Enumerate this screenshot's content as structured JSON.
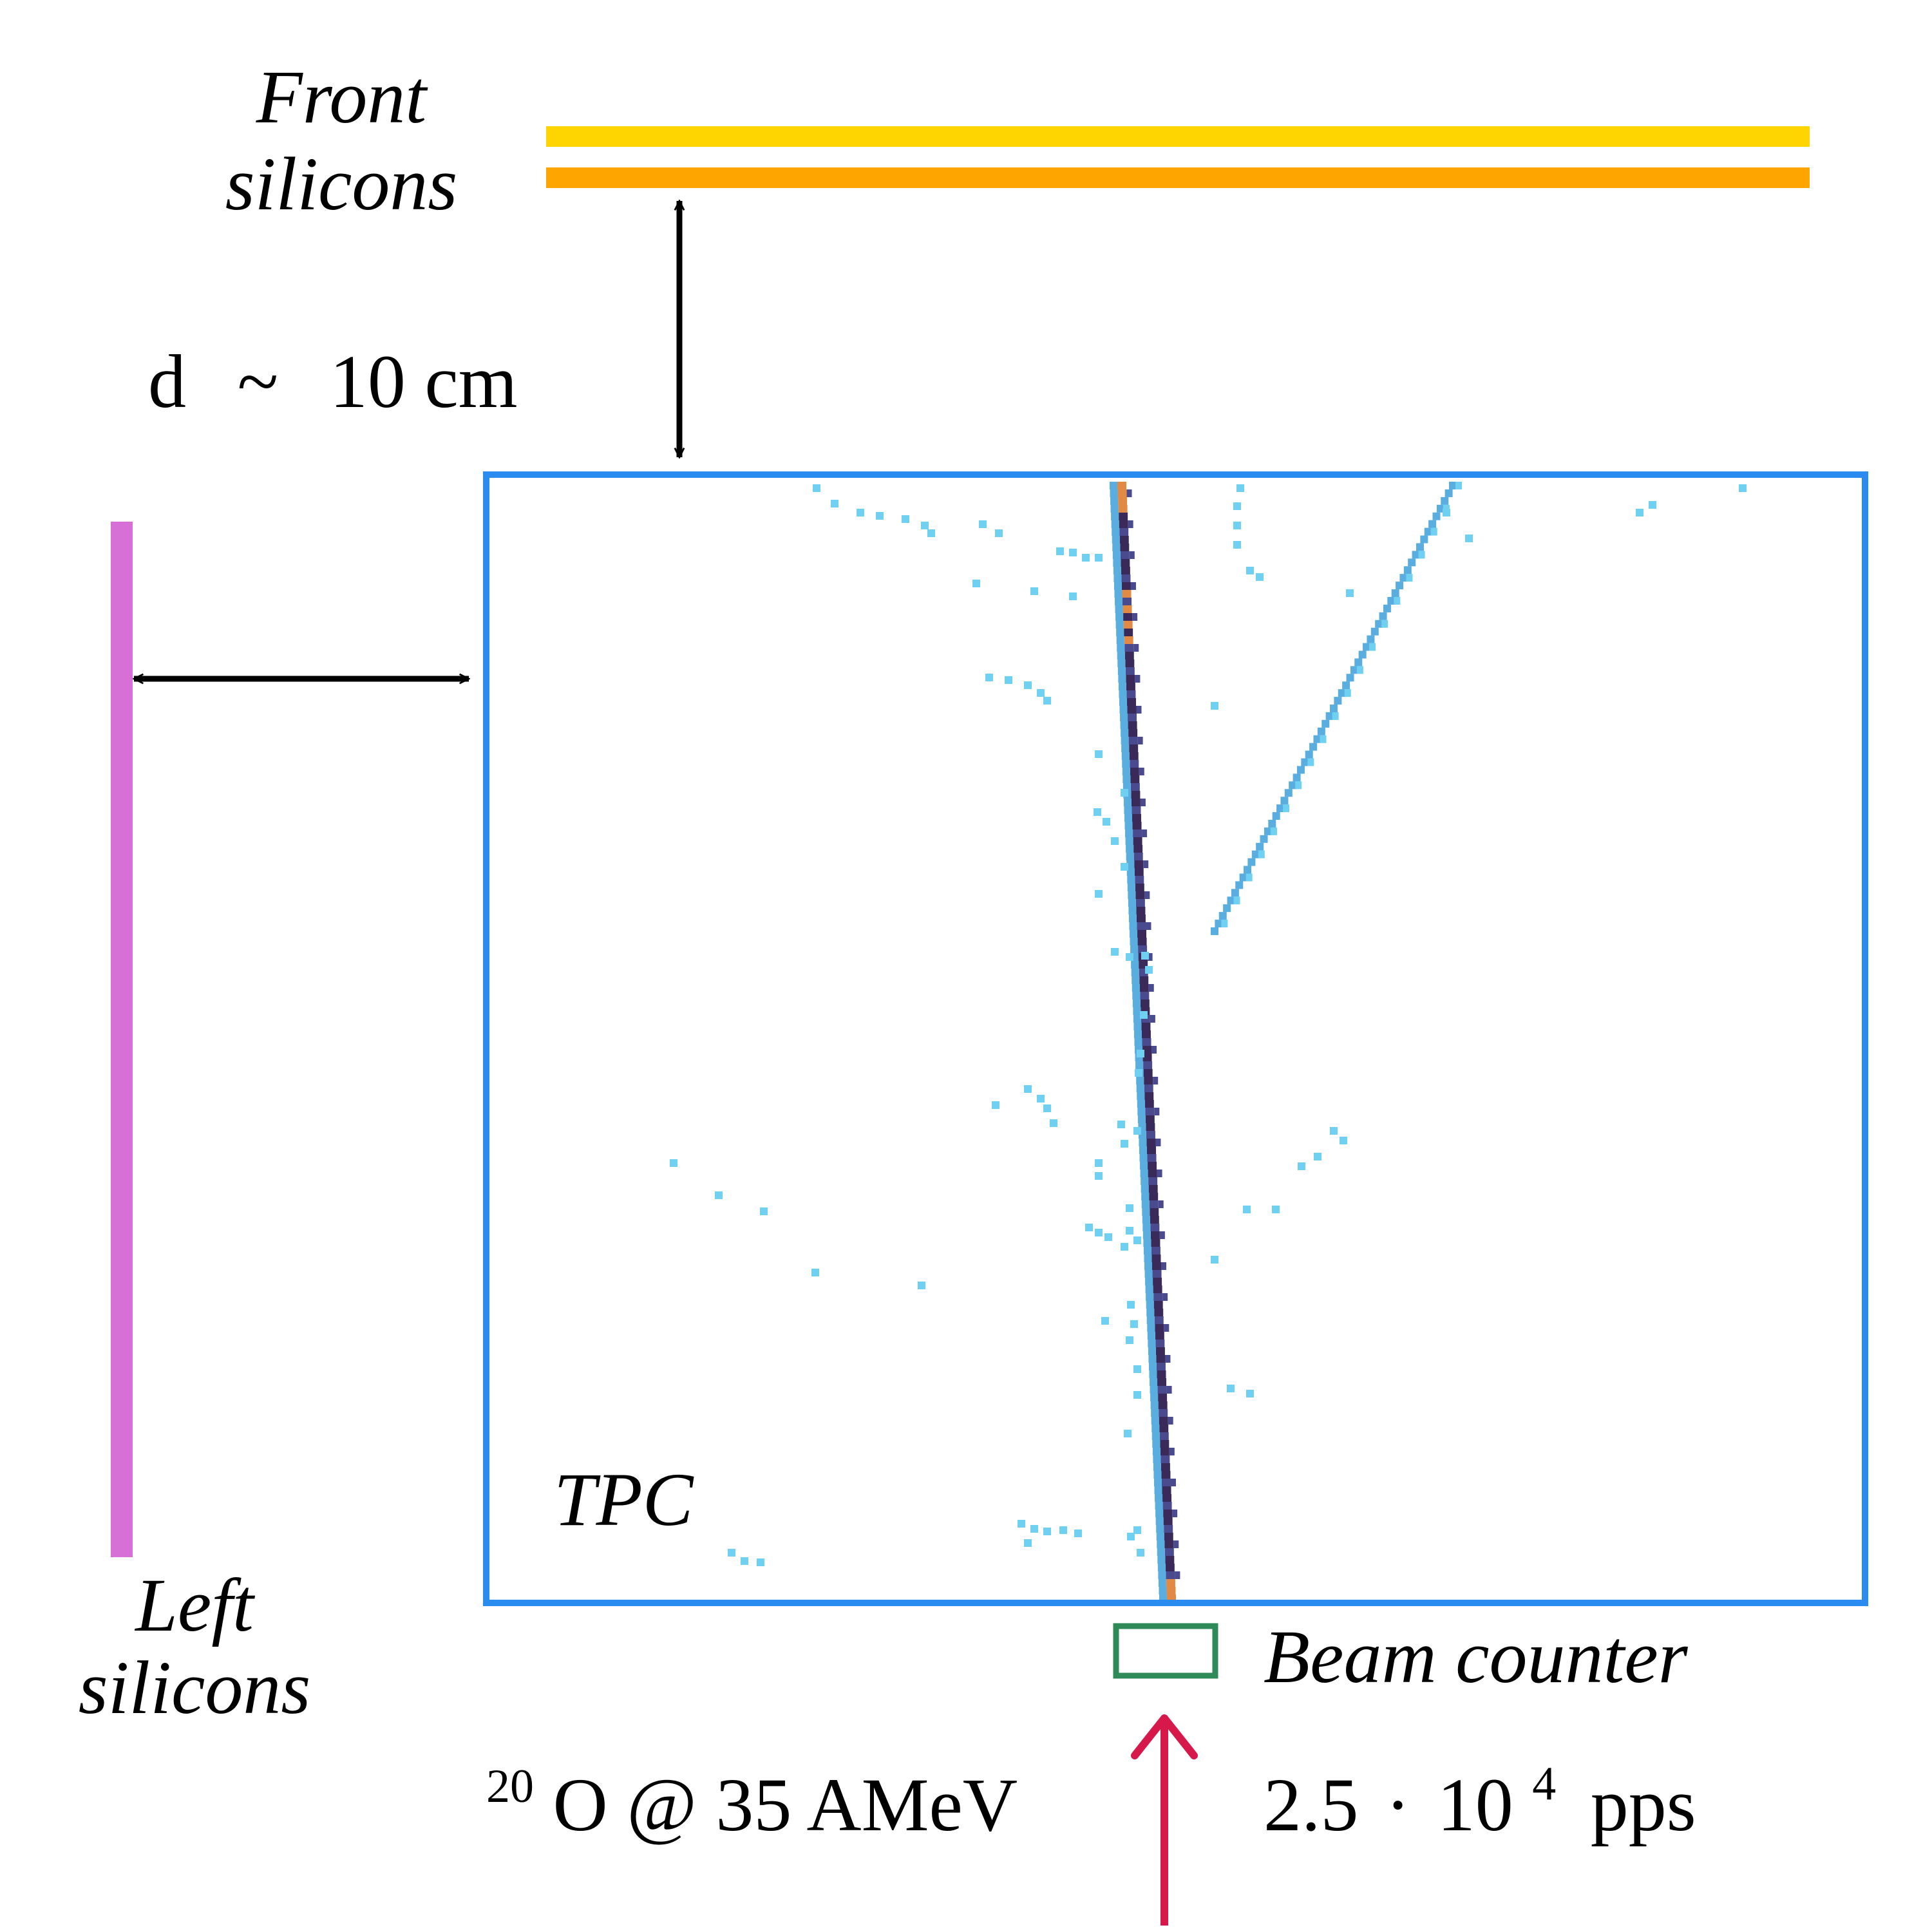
{
  "labels": {
    "front_line1": "Front",
    "front_line2": "silicons",
    "distance_d": "d",
    "distance_sim": "~",
    "distance_value": "10 cm",
    "left_line1": "Left",
    "left_line2": "silicons",
    "tpc": "TPC",
    "beam_counter": "Beam counter",
    "isotope_mass": "20",
    "isotope_rest": "O @ 35 AMeV",
    "rate_mantissa": "2.5",
    "rate_dot": "·",
    "rate_base": "10",
    "rate_exp": "4",
    "rate_unit": "pps"
  },
  "colors": {
    "front_silicon_top": "#FFD500",
    "front_silicon_bottom": "#FFA500",
    "left_silicon": "#D66FD6",
    "tpc_frame": "#2A8CF0",
    "beam_counter": "#2E8B57",
    "beam_arrow": "#D6184A",
    "dimension_arrows": "#000000",
    "hit_noise": "#6FD0F2",
    "track_secondary": "#5AAEDF",
    "track_beam_dark": "#3A2A5A",
    "track_beam_mid": "#4A4A8E",
    "track_beam_hot": "#E08A45"
  },
  "icons": {
    "beam_arrow": "arrow-up-icon",
    "distance_arrows": "double-arrow-icon"
  }
}
